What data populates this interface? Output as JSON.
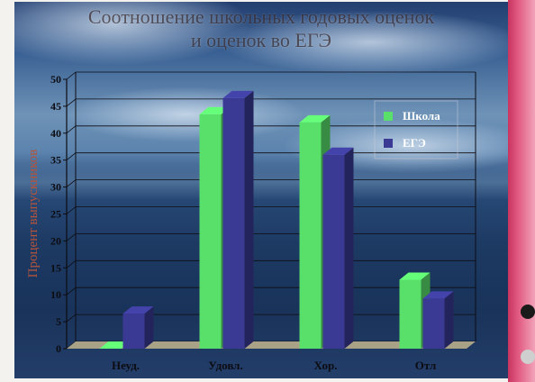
{
  "title_lines": [
    "Соотношение школьных годовых оценок",
    "и оценок во ЕГЭ"
  ],
  "chart_data": {
    "type": "bar",
    "title": "Соотношение школьных годовых оценок и оценок во ЕГЭ",
    "categories": [
      "Неуд.",
      "Удовл.",
      "Хор.",
      "Отл"
    ],
    "series": [
      {
        "name": "Школа",
        "values": [
          0,
          43.5,
          42,
          12.8
        ],
        "color": "#59e06a"
      },
      {
        "name": "ЕГЭ",
        "values": [
          6.5,
          46.5,
          36,
          9.3
        ],
        "color": "#3a3a95"
      }
    ],
    "ylabel": "Процент выпускников",
    "xlabel": "",
    "ylim": [
      0,
      50
    ],
    "yticks": [
      0,
      5,
      10,
      15,
      20,
      25,
      30,
      35,
      40,
      45,
      50
    ],
    "grid": true,
    "legend": "top-right",
    "style": "3d-columns"
  },
  "colors": {
    "slide_edge": "#d9416c",
    "grid": "#0c0c12",
    "floor": "#b8ae8c"
  }
}
